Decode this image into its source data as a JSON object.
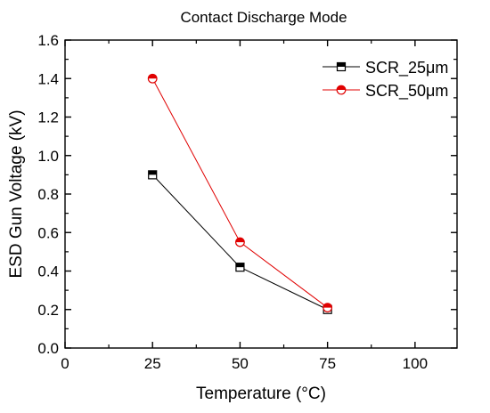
{
  "chart_data": {
    "type": "line",
    "title": "Contact Discharge Mode",
    "xlabel": "Temperature (°C)",
    "ylabel": "ESD Gun Voltage (kV)",
    "xlim": [
      0,
      112
    ],
    "ylim": [
      0,
      1.6
    ],
    "xticks": [
      0,
      25,
      50,
      75,
      100
    ],
    "yticks": [
      0.0,
      0.2,
      0.4,
      0.6,
      0.8,
      1.0,
      1.2,
      1.4,
      1.6
    ],
    "xtick_labels": [
      "0",
      "25",
      "50",
      "75",
      "100"
    ],
    "ytick_labels": [
      "0.0",
      "0.2",
      "0.4",
      "0.6",
      "0.8",
      "1.0",
      "1.2",
      "1.4",
      "1.6"
    ],
    "grid": false,
    "legend_position": "top-right",
    "series": [
      {
        "name": "SCR_25μm",
        "color": "#000000",
        "marker": "half-filled-square",
        "x": [
          25,
          50,
          75
        ],
        "y": [
          0.9,
          0.42,
          0.2
        ]
      },
      {
        "name": "SCR_50μm",
        "color": "#e00000",
        "marker": "half-filled-circle",
        "x": [
          25,
          50,
          75
        ],
        "y": [
          1.4,
          0.55,
          0.21
        ]
      }
    ]
  }
}
